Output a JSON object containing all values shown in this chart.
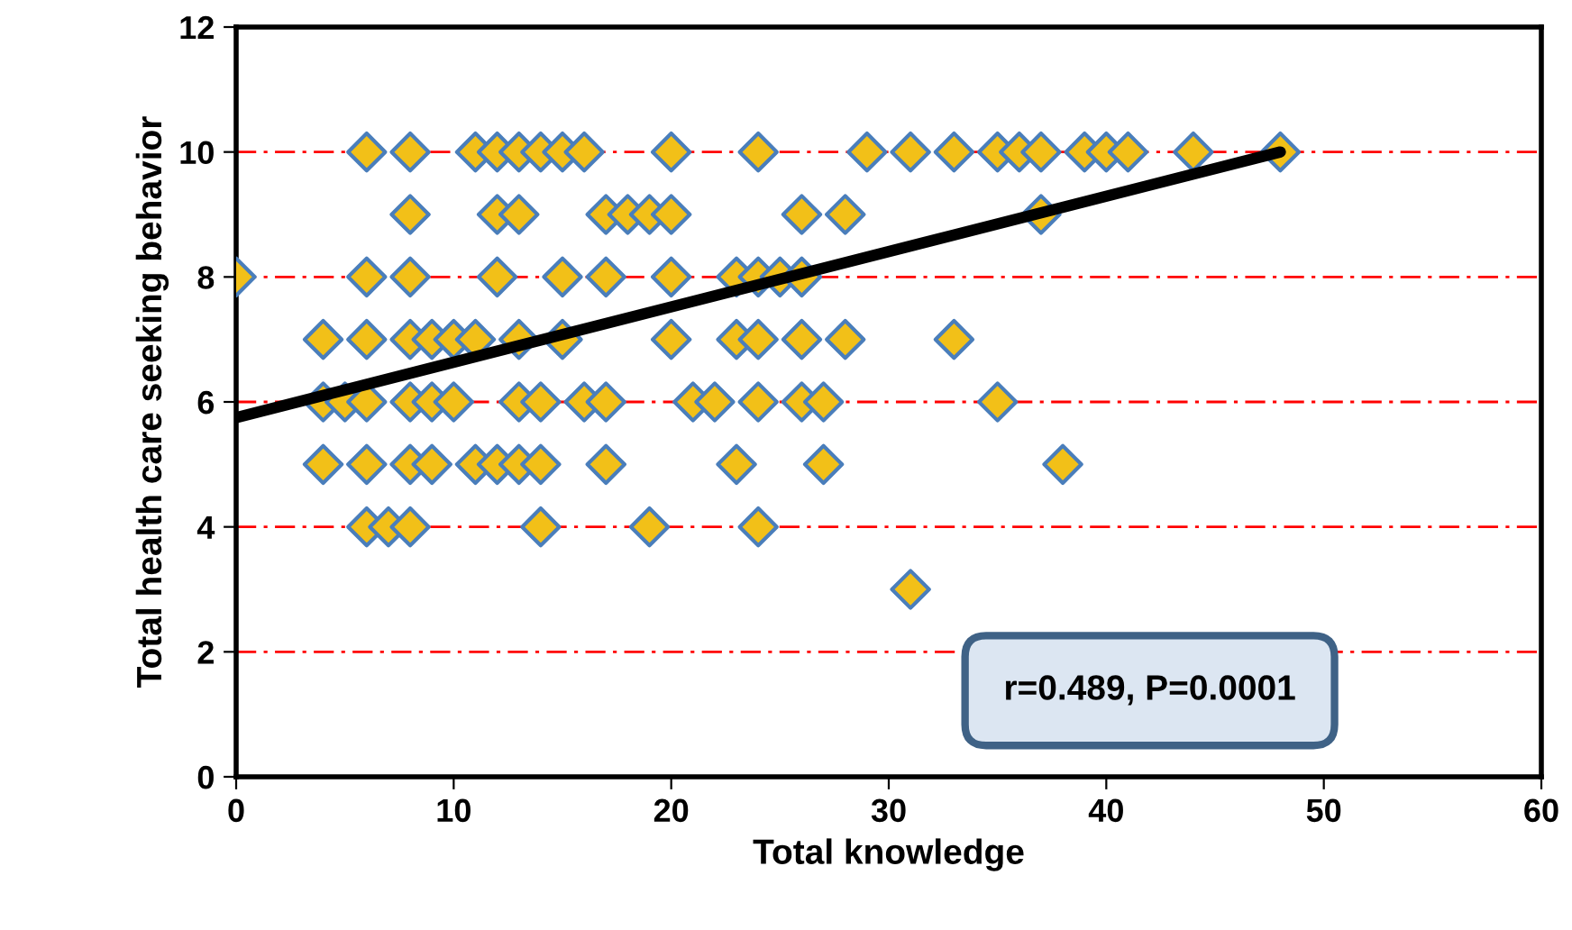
{
  "chart_data": {
    "type": "scatter",
    "xlabel": "Total knowledge",
    "ylabel": "Total health care seeking behavior",
    "xlim": [
      0,
      60
    ],
    "xticks": [
      0,
      10,
      20,
      30,
      40,
      50,
      60
    ],
    "ylim": [
      0,
      12
    ],
    "yticks": [
      0,
      2,
      4,
      6,
      8,
      10,
      12
    ],
    "grid": "y",
    "legend": false,
    "annotations": [
      "r=0.489, P=0.0001"
    ],
    "series": [
      {
        "marker": "diamond",
        "color": "#f2c018",
        "x": [
          6,
          8,
          11,
          12,
          13,
          14,
          15,
          16,
          20,
          24,
          29,
          31,
          33,
          35,
          36,
          37,
          39,
          40,
          41,
          44,
          48,
          8,
          12,
          13,
          17,
          18,
          19,
          20,
          26,
          28,
          37,
          0,
          6,
          8,
          12,
          15,
          17,
          20,
          23,
          24,
          25,
          26,
          4,
          6,
          8,
          9,
          10,
          11,
          13,
          15,
          20,
          23,
          24,
          26,
          28,
          33,
          4,
          5,
          6,
          8,
          9,
          10,
          13,
          14,
          16,
          17,
          21,
          22,
          24,
          26,
          27,
          35,
          4,
          6,
          8,
          9,
          11,
          12,
          13,
          14,
          17,
          23,
          27,
          38,
          6,
          7,
          8,
          14,
          19,
          24,
          31
        ],
        "values": [
          10,
          10,
          10,
          10,
          10,
          10,
          10,
          10,
          10,
          10,
          10,
          10,
          10,
          10,
          10,
          10,
          10,
          10,
          10,
          10,
          10,
          9,
          9,
          9,
          9,
          9,
          9,
          9,
          9,
          9,
          9,
          8,
          8,
          8,
          8,
          8,
          8,
          8,
          8,
          8,
          8,
          8,
          7,
          7,
          7,
          7,
          7,
          7,
          7,
          7,
          7,
          7,
          7,
          7,
          7,
          7,
          6,
          6,
          6,
          6,
          6,
          6,
          6,
          6,
          6,
          6,
          6,
          6,
          6,
          6,
          6,
          6,
          5,
          5,
          5,
          5,
          5,
          5,
          5,
          5,
          5,
          5,
          5,
          5,
          4,
          4,
          4,
          4,
          4,
          4,
          3
        ]
      },
      {
        "type": "line",
        "marker": "none",
        "color": "#000000",
        "x": [
          0,
          48
        ],
        "values": [
          5.75,
          10
        ]
      }
    ]
  }
}
